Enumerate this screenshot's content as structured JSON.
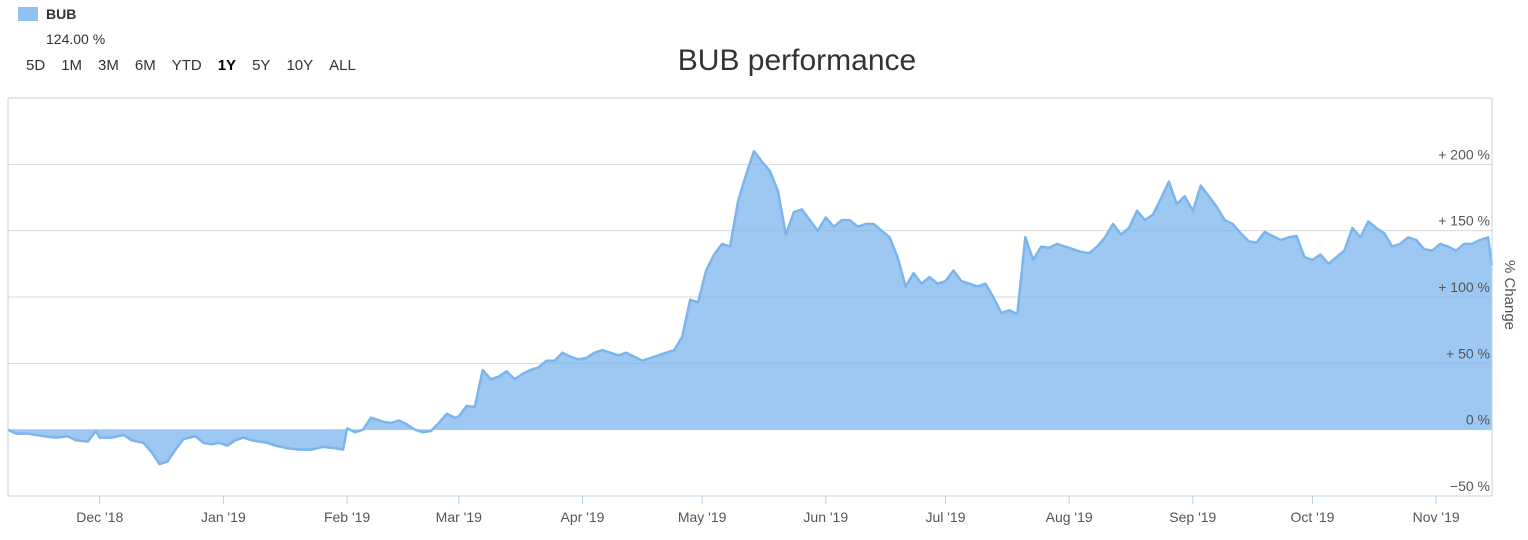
{
  "legend": {
    "series_label": "BUB",
    "current_value": "124.00 %",
    "swatch_color": "#7cb5ec"
  },
  "range_selector": {
    "buttons": [
      "5D",
      "1M",
      "3M",
      "6M",
      "YTD",
      "1Y",
      "5Y",
      "10Y",
      "ALL"
    ],
    "active": "1Y"
  },
  "chart_data": {
    "type": "area",
    "title": "BUB performance",
    "ylabel": "% Change",
    "ylim": [
      -50,
      250
    ],
    "yticks": [
      -50,
      0,
      50,
      100,
      150,
      200
    ],
    "ytick_labels": [
      "−50 %",
      "0 %",
      "+ 50 %",
      "+ 100 %",
      "+ 150 %",
      "+ 200 %"
    ],
    "xlim": [
      "2018-11-08",
      "2019-11-15"
    ],
    "xticks": [
      "2018-12-01",
      "2019-01-01",
      "2019-02-01",
      "2019-03-01",
      "2019-04-01",
      "2019-05-01",
      "2019-06-01",
      "2019-07-01",
      "2019-08-01",
      "2019-09-01",
      "2019-10-01",
      "2019-11-01"
    ],
    "xtick_labels": [
      "Dec '18",
      "Jan '19",
      "Feb '19",
      "Mar '19",
      "Apr '19",
      "May '19",
      "Jun '19",
      "Jul '19",
      "Aug '19",
      "Sep '19",
      "Oct '19",
      "Nov '19"
    ],
    "grid": true,
    "series": [
      {
        "name": "BUB",
        "color": "#7cb5ec",
        "points": [
          [
            "2018-11-08",
            0
          ],
          [
            "2018-11-10",
            -3
          ],
          [
            "2018-11-13",
            -3
          ],
          [
            "2018-11-17",
            -5
          ],
          [
            "2018-11-20",
            -6
          ],
          [
            "2018-11-23",
            -5
          ],
          [
            "2018-11-25",
            -8
          ],
          [
            "2018-11-28",
            -9
          ],
          [
            "2018-11-30",
            -1
          ],
          [
            "2018-12-01",
            -6
          ],
          [
            "2018-12-04",
            -6
          ],
          [
            "2018-12-07",
            -4
          ],
          [
            "2018-12-09",
            -8
          ],
          [
            "2018-12-12",
            -10
          ],
          [
            "2018-12-14",
            -17
          ],
          [
            "2018-12-16",
            -26
          ],
          [
            "2018-12-18",
            -24
          ],
          [
            "2018-12-20",
            -15
          ],
          [
            "2018-12-22",
            -7
          ],
          [
            "2018-12-25",
            -5
          ],
          [
            "2018-12-27",
            -10
          ],
          [
            "2018-12-29",
            -11
          ],
          [
            "2018-12-31",
            -10
          ],
          [
            "2019-01-02",
            -12
          ],
          [
            "2019-01-04",
            -8
          ],
          [
            "2019-01-06",
            -6
          ],
          [
            "2019-01-08",
            -8
          ],
          [
            "2019-01-10",
            -9
          ],
          [
            "2019-01-12",
            -10
          ],
          [
            "2019-01-14",
            -12
          ],
          [
            "2019-01-17",
            -14
          ],
          [
            "2019-01-20",
            -15
          ],
          [
            "2019-01-23",
            -15
          ],
          [
            "2019-01-26",
            -13
          ],
          [
            "2019-01-29",
            -14
          ],
          [
            "2019-01-31",
            -15
          ],
          [
            "2019-02-01",
            1
          ],
          [
            "2019-02-03",
            -2
          ],
          [
            "2019-02-05",
            0
          ],
          [
            "2019-02-07",
            9
          ],
          [
            "2019-02-10",
            6
          ],
          [
            "2019-02-12",
            5
          ],
          [
            "2019-02-14",
            7
          ],
          [
            "2019-02-16",
            4
          ],
          [
            "2019-02-18",
            0
          ],
          [
            "2019-02-20",
            -2
          ],
          [
            "2019-02-22",
            -1
          ],
          [
            "2019-02-24",
            5
          ],
          [
            "2019-02-26",
            12
          ],
          [
            "2019-02-28",
            9
          ],
          [
            "2019-03-01",
            10
          ],
          [
            "2019-03-03",
            18
          ],
          [
            "2019-03-05",
            17
          ],
          [
            "2019-03-07",
            45
          ],
          [
            "2019-03-09",
            38
          ],
          [
            "2019-03-11",
            40
          ],
          [
            "2019-03-13",
            44
          ],
          [
            "2019-03-15",
            38
          ],
          [
            "2019-03-17",
            42
          ],
          [
            "2019-03-19",
            45
          ],
          [
            "2019-03-21",
            47
          ],
          [
            "2019-03-23",
            52
          ],
          [
            "2019-03-25",
            52
          ],
          [
            "2019-03-27",
            58
          ],
          [
            "2019-03-29",
            55
          ],
          [
            "2019-03-31",
            53
          ],
          [
            "2019-04-02",
            54
          ],
          [
            "2019-04-04",
            58
          ],
          [
            "2019-04-06",
            60
          ],
          [
            "2019-04-08",
            58
          ],
          [
            "2019-04-10",
            56
          ],
          [
            "2019-04-12",
            58
          ],
          [
            "2019-04-14",
            55
          ],
          [
            "2019-04-16",
            52
          ],
          [
            "2019-04-18",
            54
          ],
          [
            "2019-04-20",
            56
          ],
          [
            "2019-04-22",
            58
          ],
          [
            "2019-04-24",
            60
          ],
          [
            "2019-04-26",
            70
          ],
          [
            "2019-04-28",
            98
          ],
          [
            "2019-04-30",
            96
          ],
          [
            "2019-05-02",
            120
          ],
          [
            "2019-05-04",
            132
          ],
          [
            "2019-05-06",
            140
          ],
          [
            "2019-05-08",
            138
          ],
          [
            "2019-05-10",
            172
          ],
          [
            "2019-05-12",
            192
          ],
          [
            "2019-05-14",
            210
          ],
          [
            "2019-05-16",
            202
          ],
          [
            "2019-05-18",
            195
          ],
          [
            "2019-05-20",
            180
          ],
          [
            "2019-05-22",
            147
          ],
          [
            "2019-05-24",
            164
          ],
          [
            "2019-05-26",
            166
          ],
          [
            "2019-05-28",
            158
          ],
          [
            "2019-05-30",
            150
          ],
          [
            "2019-06-01",
            160
          ],
          [
            "2019-06-03",
            153
          ],
          [
            "2019-06-05",
            158
          ],
          [
            "2019-06-07",
            158
          ],
          [
            "2019-06-09",
            153
          ],
          [
            "2019-06-11",
            155
          ],
          [
            "2019-06-13",
            155
          ],
          [
            "2019-06-15",
            150
          ],
          [
            "2019-06-17",
            145
          ],
          [
            "2019-06-19",
            130
          ],
          [
            "2019-06-21",
            108
          ],
          [
            "2019-06-23",
            118
          ],
          [
            "2019-06-25",
            110
          ],
          [
            "2019-06-27",
            115
          ],
          [
            "2019-06-29",
            110
          ],
          [
            "2019-07-01",
            112
          ],
          [
            "2019-07-03",
            120
          ],
          [
            "2019-07-05",
            112
          ],
          [
            "2019-07-07",
            110
          ],
          [
            "2019-07-09",
            108
          ],
          [
            "2019-07-11",
            110
          ],
          [
            "2019-07-13",
            100
          ],
          [
            "2019-07-15",
            88
          ],
          [
            "2019-07-17",
            90
          ],
          [
            "2019-07-19",
            87
          ],
          [
            "2019-07-21",
            145
          ],
          [
            "2019-07-23",
            128
          ],
          [
            "2019-07-25",
            138
          ],
          [
            "2019-07-27",
            137
          ],
          [
            "2019-07-29",
            140
          ],
          [
            "2019-07-31",
            138
          ],
          [
            "2019-08-02",
            136
          ],
          [
            "2019-08-04",
            134
          ],
          [
            "2019-08-06",
            133
          ],
          [
            "2019-08-08",
            138
          ],
          [
            "2019-08-10",
            145
          ],
          [
            "2019-08-12",
            155
          ],
          [
            "2019-08-14",
            147
          ],
          [
            "2019-08-16",
            152
          ],
          [
            "2019-08-18",
            165
          ],
          [
            "2019-08-20",
            158
          ],
          [
            "2019-08-22",
            162
          ],
          [
            "2019-08-24",
            174
          ],
          [
            "2019-08-26",
            187
          ],
          [
            "2019-08-28",
            170
          ],
          [
            "2019-08-30",
            176
          ],
          [
            "2019-09-01",
            165
          ],
          [
            "2019-09-03",
            184
          ],
          [
            "2019-09-05",
            176
          ],
          [
            "2019-09-07",
            168
          ],
          [
            "2019-09-09",
            158
          ],
          [
            "2019-09-11",
            155
          ],
          [
            "2019-09-13",
            148
          ],
          [
            "2019-09-15",
            142
          ],
          [
            "2019-09-17",
            141
          ],
          [
            "2019-09-19",
            149
          ],
          [
            "2019-09-21",
            146
          ],
          [
            "2019-09-23",
            143
          ],
          [
            "2019-09-25",
            145
          ],
          [
            "2019-09-27",
            146
          ],
          [
            "2019-09-29",
            130
          ],
          [
            "2019-10-01",
            128
          ],
          [
            "2019-10-03",
            132
          ],
          [
            "2019-10-05",
            125
          ],
          [
            "2019-10-07",
            130
          ],
          [
            "2019-10-09",
            135
          ],
          [
            "2019-10-11",
            152
          ],
          [
            "2019-10-13",
            145
          ],
          [
            "2019-10-15",
            157
          ],
          [
            "2019-10-17",
            152
          ],
          [
            "2019-10-19",
            148
          ],
          [
            "2019-10-21",
            138
          ],
          [
            "2019-10-23",
            140
          ],
          [
            "2019-10-25",
            145
          ],
          [
            "2019-10-27",
            143
          ],
          [
            "2019-10-29",
            136
          ],
          [
            "2019-10-31",
            135
          ],
          [
            "2019-11-02",
            140
          ],
          [
            "2019-11-04",
            138
          ],
          [
            "2019-11-06",
            135
          ],
          [
            "2019-11-08",
            140
          ],
          [
            "2019-11-10",
            140
          ],
          [
            "2019-11-12",
            143
          ],
          [
            "2019-11-14",
            145
          ],
          [
            "2019-11-15",
            124
          ]
        ]
      }
    ]
  }
}
